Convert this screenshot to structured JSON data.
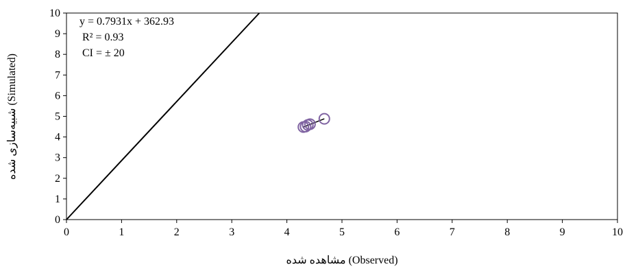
{
  "chart_data": {
    "type": "scatter",
    "xlabel": "مشاهده شده (Observed)",
    "ylabel": "شبیه‌سازی شده (Simulated)",
    "xlim": [
      0,
      10
    ],
    "ylim": [
      0,
      10
    ],
    "xticks": [
      "0",
      "1",
      "2",
      "3",
      "4",
      "5",
      "6",
      "7",
      "8",
      "9",
      "10"
    ],
    "yticks": [
      "0",
      "1",
      "2",
      "3",
      "4",
      "5",
      "6",
      "7",
      "8",
      "9",
      "10"
    ],
    "grid": false,
    "points": [
      {
        "x": 4.3,
        "y": 4.48
      },
      {
        "x": 4.34,
        "y": 4.5
      },
      {
        "x": 4.38,
        "y": 4.58
      },
      {
        "x": 4.42,
        "y": 4.62
      },
      {
        "x": 4.68,
        "y": 4.88
      }
    ],
    "trendline": {
      "x": [
        4.3,
        4.68
      ],
      "y": [
        4.48,
        4.88
      ]
    },
    "reference_line": {
      "x": [
        0,
        3.5
      ],
      "y": [
        0,
        10
      ]
    },
    "annotations": {
      "equation": "y = 0.7931x + 362.93",
      "r2": "R² = 0.93",
      "ci": "CI = ± 20"
    },
    "colors": {
      "marker_stroke": "#8064A2",
      "lines": "#000000",
      "frame": "#000000"
    }
  }
}
